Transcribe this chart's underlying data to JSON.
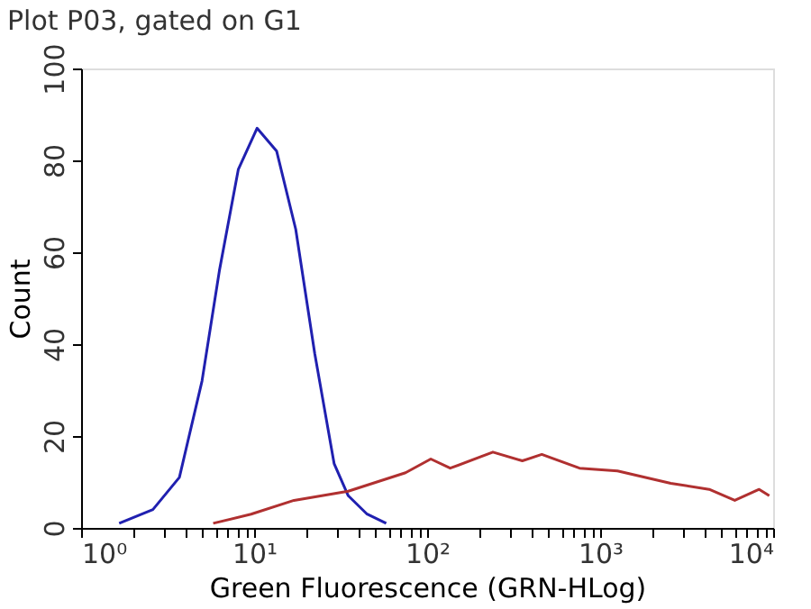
{
  "chart_data": {
    "type": "line",
    "title": "Plot P03, gated on G1",
    "xlabel": "Green Fluorescence (GRN-HLog)",
    "ylabel": "Count",
    "log": "x",
    "grid": false,
    "marker": "none",
    "line_style": "solid",
    "xlim": [
      1,
      10000
    ],
    "xticks": [
      {
        "value": 1,
        "label": "10⁰"
      },
      {
        "value": 10,
        "label": "10¹"
      },
      {
        "value": 100,
        "label": "10²"
      },
      {
        "value": 1000,
        "label": "10³"
      },
      {
        "value": 10000,
        "label": "10⁴"
      },
      {
        "value": 2,
        "label": null
      },
      {
        "value": 3,
        "label": null
      },
      {
        "value": 4,
        "label": null
      },
      {
        "value": 5,
        "label": null
      },
      {
        "value": 6,
        "label": null
      },
      {
        "value": 7,
        "label": null
      },
      {
        "value": 8,
        "label": null
      },
      {
        "value": 9,
        "label": null
      },
      {
        "value": 20,
        "label": null
      },
      {
        "value": 30,
        "label": null
      },
      {
        "value": 40,
        "label": null
      },
      {
        "value": 50,
        "label": null
      },
      {
        "value": 60,
        "label": null
      },
      {
        "value": 70,
        "label": null
      },
      {
        "value": 80,
        "label": null
      },
      {
        "value": 90,
        "label": null
      },
      {
        "value": 200,
        "label": null
      },
      {
        "value": 300,
        "label": null
      },
      {
        "value": 400,
        "label": null
      },
      {
        "value": 500,
        "label": null
      },
      {
        "value": 600,
        "label": null
      },
      {
        "value": 700,
        "label": null
      },
      {
        "value": 800,
        "label": null
      },
      {
        "value": 900,
        "label": null
      },
      {
        "value": 2000,
        "label": null
      },
      {
        "value": 3000,
        "label": null
      },
      {
        "value": 4000,
        "label": null
      },
      {
        "value": 5000,
        "label": null
      },
      {
        "value": 6000,
        "label": null
      },
      {
        "value": 7000,
        "label": null
      },
      {
        "value": 8000,
        "label": null
      },
      {
        "value": 9000,
        "label": null
      }
    ],
    "ylim": [
      0,
      100
    ],
    "yticks": [
      0,
      20,
      40,
      60,
      80,
      100
    ],
    "series": [
      {
        "color": "#2020b0",
        "x": [
          1.66,
          2.6,
          3.7,
          5.0,
          6.3,
          8.1,
          10.4,
          13.5,
          17.4,
          22.4,
          29,
          35,
          45,
          58
        ],
        "values": [
          1,
          4,
          11,
          32,
          56,
          78,
          87,
          82,
          65,
          38,
          14,
          7,
          3,
          1
        ]
      },
      {
        "color": "#b03030",
        "x": [
          5.8,
          9.6,
          17,
          35,
          75,
          105,
          136,
          240,
          355,
          460,
          760,
          1260,
          2560,
          4270,
          6000,
          8300,
          9500
        ],
        "values": [
          1,
          3,
          6,
          8,
          12,
          15,
          13,
          16.5,
          14.6,
          16,
          13,
          12.4,
          9.7,
          8.4,
          6,
          8.4,
          7
        ]
      }
    ]
  }
}
